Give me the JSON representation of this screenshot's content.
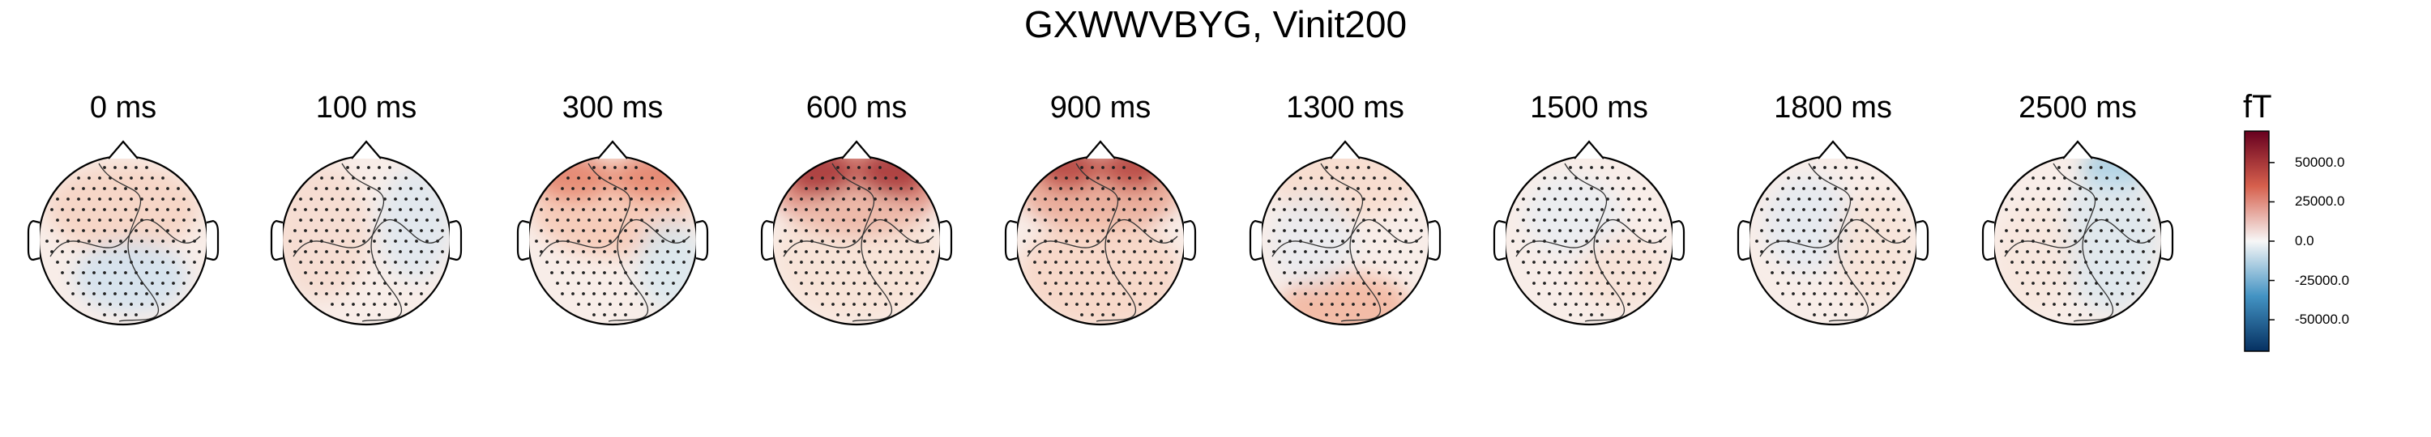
{
  "title": "GXWWVBYG, Vinit200",
  "times": [
    "0 ms",
    "100 ms",
    "300 ms",
    "600 ms",
    "900 ms",
    "1300 ms",
    "1500 ms",
    "1800 ms",
    "2500 ms"
  ],
  "colorbar": {
    "unit": "fT",
    "ticks": [
      "50000.0",
      "25000.0",
      "0.0",
      "-25000.0",
      "-50000.0"
    ],
    "colormap": "RdBu_r",
    "range": [
      -70000,
      70000
    ],
    "colors": {
      "max": "#67001f",
      "pos": "#d6604d",
      "zero": "#f7f7f7",
      "neg": "#4393c3",
      "min": "#053061"
    }
  },
  "topomaps": [
    {
      "time": "0 ms",
      "pattern": "faint-pos-upper, faint-neg-center"
    },
    {
      "time": "100 ms",
      "pattern": "faint-pos-left, faint-neg-right"
    },
    {
      "time": "300 ms",
      "pattern": "pos-frontal-bilateral, faint-neg-posterior-right"
    },
    {
      "time": "600 ms",
      "pattern": "strong-pos-frontal-bilateral"
    },
    {
      "time": "900 ms",
      "pattern": "strong-pos-frontal-bilateral, faint-pos-posterior"
    },
    {
      "time": "1300 ms",
      "pattern": "faint-pos-frontal, pos-occipital"
    },
    {
      "time": "1500 ms",
      "pattern": "faint mixed"
    },
    {
      "time": "1800 ms",
      "pattern": "faint mixed"
    },
    {
      "time": "2500 ms",
      "pattern": "neg-frontal-right, faint-neg-right"
    }
  ]
}
